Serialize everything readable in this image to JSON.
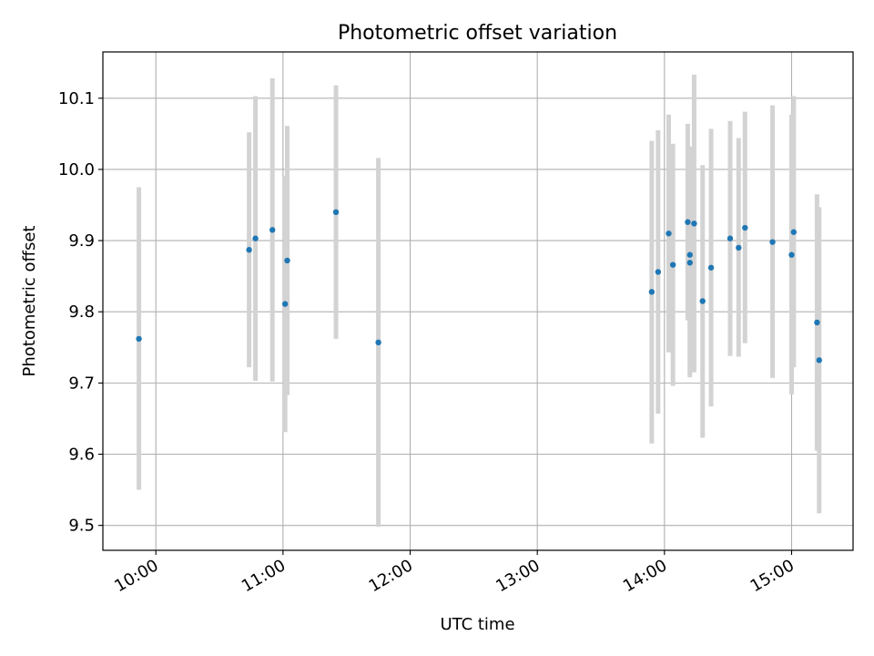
{
  "chart_data": {
    "type": "scatter",
    "title": "Photometric offset variation",
    "xlabel": "UTC time",
    "ylabel": "Photometric offset",
    "x_tick_labels": [
      "10:00",
      "11:00",
      "12:00",
      "13:00",
      "14:00",
      "15:00"
    ],
    "y_tick_labels": [
      "9.5",
      "9.6",
      "9.7",
      "9.8",
      "9.9",
      "10.0",
      "10.1"
    ],
    "x_ticks": [
      "10:00",
      "11:00",
      "12:00",
      "13:00",
      "14:00",
      "15:00"
    ],
    "y_ticks": [
      9.5,
      9.6,
      9.7,
      9.8,
      9.9,
      10.0,
      10.1
    ],
    "xlim": [
      "09:35",
      "15:29"
    ],
    "ylim": [
      9.465,
      10.165
    ],
    "grid": true,
    "colors": {
      "point": "#1f77b4",
      "errorbar": "#d3d3d3",
      "grid": "#b0b0b0"
    },
    "points": [
      {
        "x": "09:52",
        "y": 9.762,
        "low": 9.55,
        "high": 9.975
      },
      {
        "x": "10:44",
        "y": 9.887,
        "low": 9.722,
        "high": 10.052
      },
      {
        "x": "10:47",
        "y": 9.903,
        "low": 9.703,
        "high": 10.103
      },
      {
        "x": "10:55",
        "y": 9.915,
        "low": 9.702,
        "high": 10.128
      },
      {
        "x": "11:01",
        "y": 9.811,
        "low": 9.631,
        "high": 9.991
      },
      {
        "x": "11:02",
        "y": 9.872,
        "low": 9.683,
        "high": 10.061
      },
      {
        "x": "11:25",
        "y": 9.94,
        "low": 9.762,
        "high": 10.118
      },
      {
        "x": "11:45",
        "y": 9.757,
        "low": 9.498,
        "high": 10.016
      },
      {
        "x": "13:54",
        "y": 9.828,
        "low": 9.615,
        "high": 10.04
      },
      {
        "x": "13:57",
        "y": 9.856,
        "low": 9.657,
        "high": 10.055
      },
      {
        "x": "14:02",
        "y": 9.91,
        "low": 9.743,
        "high": 10.077
      },
      {
        "x": "14:04",
        "y": 9.866,
        "low": 9.696,
        "high": 10.036
      },
      {
        "x": "14:11",
        "y": 9.926,
        "low": 9.788,
        "high": 10.064
      },
      {
        "x": "14:12",
        "y": 9.88,
        "low": 9.728,
        "high": 10.032
      },
      {
        "x": "14:12",
        "y": 9.869,
        "low": 9.708,
        "high": 10.03
      },
      {
        "x": "14:14",
        "y": 9.924,
        "low": 9.715,
        "high": 10.133
      },
      {
        "x": "14:18",
        "y": 9.815,
        "low": 9.623,
        "high": 10.006
      },
      {
        "x": "14:22",
        "y": 9.862,
        "low": 9.667,
        "high": 10.057
      },
      {
        "x": "14:31",
        "y": 9.903,
        "low": 9.738,
        "high": 10.068
      },
      {
        "x": "14:35",
        "y": 9.89,
        "low": 9.737,
        "high": 10.044
      },
      {
        "x": "14:38",
        "y": 9.918,
        "low": 9.756,
        "high": 10.081
      },
      {
        "x": "14:51",
        "y": 9.898,
        "low": 9.707,
        "high": 10.09
      },
      {
        "x": "15:00",
        "y": 9.88,
        "low": 9.684,
        "high": 10.077
      },
      {
        "x": "15:01",
        "y": 9.912,
        "low": 9.722,
        "high": 10.103
      },
      {
        "x": "15:12",
        "y": 9.785,
        "low": 9.605,
        "high": 9.965
      },
      {
        "x": "15:13",
        "y": 9.732,
        "low": 9.517,
        "high": 9.947
      }
    ]
  }
}
